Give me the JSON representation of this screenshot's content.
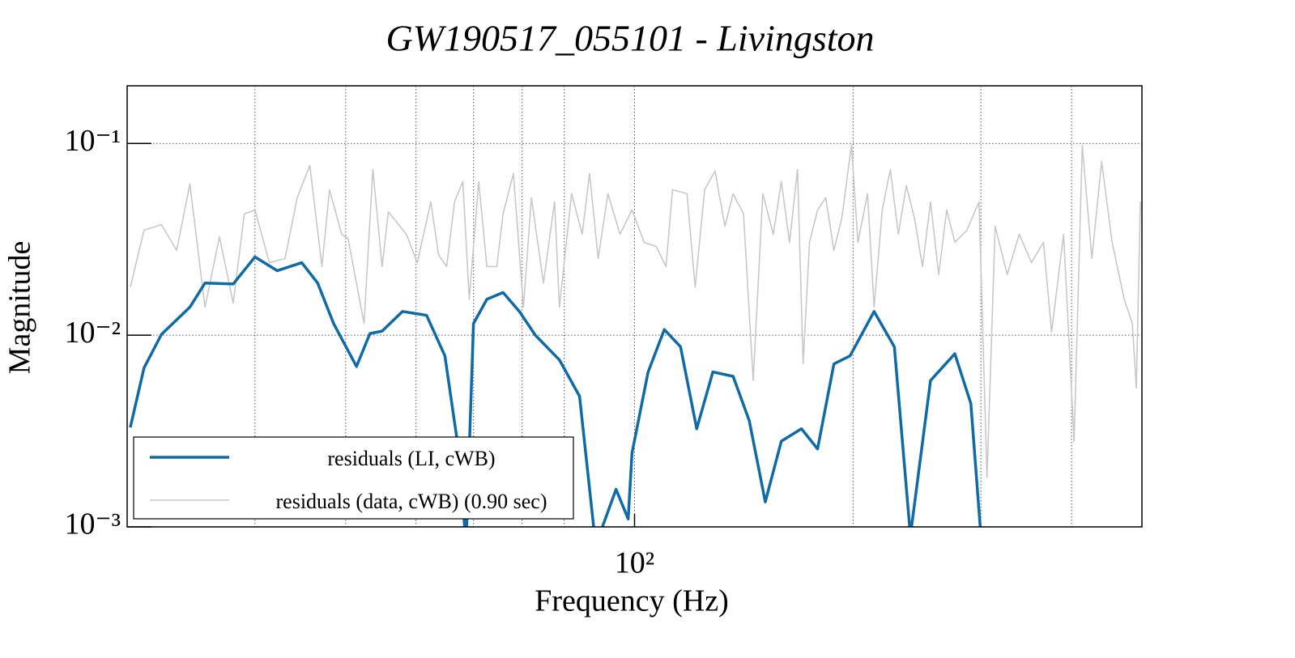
{
  "chart_data": {
    "type": "line",
    "title": "GW190517_055101 - Livingston",
    "xlabel": "Frequency (Hz)",
    "ylabel": "Magnitude",
    "xscale": "log",
    "yscale": "log",
    "xlim": [
      20,
      500
    ],
    "ylim": [
      0.001,
      0.2
    ],
    "xticks": [
      {
        "value": 100,
        "label": "10²"
      }
    ],
    "xgrid": [
      30,
      40,
      50,
      60,
      70,
      80,
      100,
      200,
      300,
      400
    ],
    "yticks": [
      {
        "value": 0.1,
        "label": "10⁻¹"
      },
      {
        "value": 0.01,
        "label": "10⁻²"
      },
      {
        "value": 0.001,
        "label": "10⁻³"
      }
    ],
    "grid": true,
    "legend": "lower left",
    "series": [
      {
        "name": "residuals (LI, cWB)",
        "color": "#0f6aa6",
        "x": [
          20.2,
          21.1,
          22.3,
          24.4,
          25.6,
          28.0,
          30,
          32.2,
          34.8,
          36.6,
          38.5,
          41.4,
          43.2,
          44.9,
          47.9,
          51.7,
          54.8,
          57.3,
          58.6,
          60,
          62.6,
          65.9,
          69.4,
          73.0,
          78.8,
          84.0,
          88.4,
          94.3,
          98.0,
          99.2,
          104.4,
          109.9,
          115.7,
          121.8,
          128.2,
          136.7,
          143.9,
          151.4,
          159.3,
          169.8,
          178.7,
          188.2,
          198.1,
          213.8,
          228.0,
          239.9,
          255.7,
          276.2,
          290.6,
          300
        ],
        "values": [
          0.0033,
          0.00675,
          0.0101,
          0.014,
          0.0187,
          0.0185,
          0.0256,
          0.0217,
          0.0239,
          0.0187,
          0.0115,
          0.00687,
          0.0102,
          0.0105,
          0.0133,
          0.0127,
          0.0078,
          0.00243,
          0.0008,
          0.0115,
          0.0154,
          0.0167,
          0.0133,
          0.01,
          0.00743,
          0.0048,
          0.0008,
          0.00157,
          0.0011,
          0.00243,
          0.00643,
          0.0107,
          0.0087,
          0.00325,
          0.00643,
          0.0061,
          0.00358,
          0.00135,
          0.0028,
          0.00325,
          0.00255,
          0.00708,
          0.0078,
          0.0133,
          0.0087,
          0.0009,
          0.0058,
          0.008,
          0.0044,
          0.0009
        ]
      },
      {
        "name": "residuals (data, cWB) (0.90 sec)",
        "color": "#c8c8c8",
        "x": [
          20.2,
          21.1,
          22.3,
          23.4,
          24.4,
          25.6,
          26.8,
          28.0,
          29.0,
          30,
          31.4,
          33.0,
          34.3,
          35.7,
          37.1,
          38.0,
          39.5,
          40.3,
          42.4,
          43.6,
          44.9,
          45.8,
          48.5,
          50.2,
          52.4,
          53.7,
          55.1,
          56.5,
          58.0,
          59.2,
          61.0,
          62.6,
          64.6,
          65.9,
          68.1,
          70.3,
          72.1,
          74.9,
          77.6,
          78.8,
          81.9,
          84.7,
          86.7,
          89.1,
          91.9,
          95.5,
          99.2,
          103.1,
          107.1,
          110.5,
          112.8,
          118.1,
          121.2,
          124.9,
          129.1,
          133.2,
          136.7,
          141.3,
          145.7,
          150.2,
          155.3,
          159.3,
          163.5,
          167.7,
          170.7,
          174.2,
          178.7,
          183.4,
          188.2,
          193.0,
          199.0,
          203.1,
          209.4,
          213.8,
          219.4,
          225.1,
          230.9,
          236.8,
          243.0,
          249.3,
          255.7,
          262.4,
          269.2,
          276.2,
          287.0,
          298.2,
          305.9,
          313.9,
          326.1,
          338.8,
          352.2,
          365.9,
          375.4,
          390.0,
          403.2,
          413.8,
          426.6,
          440.0,
          454.9,
          472.7,
          485.0,
          491.2,
          497.5
        ],
        "values": [
          0.0178,
          0.0353,
          0.0377,
          0.0277,
          0.0615,
          0.014,
          0.0326,
          0.0147,
          0.0429,
          0.045,
          0.0239,
          0.0251,
          0.0521,
          0.0769,
          0.0228,
          0.0574,
          0.0336,
          0.032,
          0.0115,
          0.0732,
          0.0228,
          0.044,
          0.0336,
          0.0239,
          0.0496,
          0.0263,
          0.0228,
          0.0496,
          0.0633,
          0.0154,
          0.0633,
          0.0228,
          0.0228,
          0.0429,
          0.0698,
          0.014,
          0.0521,
          0.0187,
          0.0496,
          0.014,
          0.0547,
          0.0336,
          0.0698,
          0.0251,
          0.0547,
          0.0336,
          0.045,
          0.0305,
          0.029,
          0.0228,
          0.0574,
          0.0547,
          0.0178,
          0.0574,
          0.0718,
          0.037,
          0.0547,
          0.0429,
          0.0058,
          0.0547,
          0.0336,
          0.0633,
          0.0305,
          0.0732,
          0.0071,
          0.0305,
          0.045,
          0.0521,
          0.0277,
          0.0408,
          0.0981,
          0.0305,
          0.0547,
          0.014,
          0.045,
          0.0732,
          0.0336,
          0.0603,
          0.0408,
          0.0228,
          0.0496,
          0.0207,
          0.045,
          0.0305,
          0.0353,
          0.0496,
          0.00181,
          0.037,
          0.0207,
          0.0336,
          0.0239,
          0.0305,
          0.0104,
          0.0336,
          0.0028,
          0.0981,
          0.0251,
          0.0807,
          0.0305,
          0.0154,
          0.0115,
          0.0053,
          0.0496
        ]
      }
    ]
  }
}
